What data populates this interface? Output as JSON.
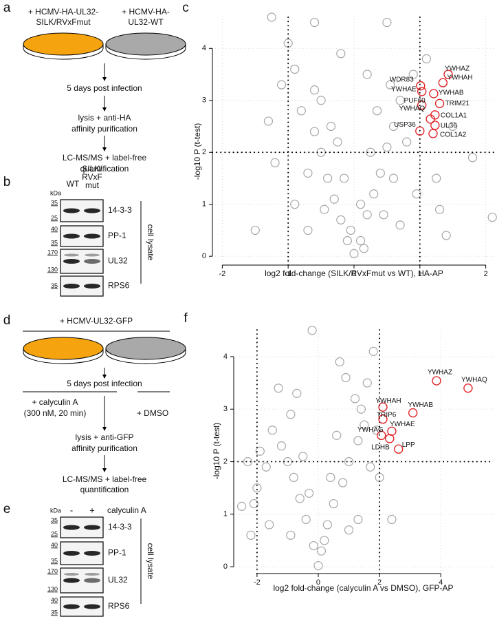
{
  "panel_a": {
    "label": "a",
    "left_condition": [
      "+ HCMV-HA-UL32-",
      "SILK/RVxFmut"
    ],
    "right_condition": [
      "+ HCMV-HA-",
      "UL32-WT"
    ],
    "steps": [
      [
        "5 days post infection"
      ],
      [
        "lysis + anti-HA",
        "affinity purification"
      ],
      [
        "LC-MS/MS + label-free",
        "quantification"
      ]
    ]
  },
  "panel_b": {
    "label": "b",
    "kda_unit": "kDa",
    "lanes": [
      [
        "WT"
      ],
      [
        "SILK/",
        "RVxF",
        "mut"
      ]
    ],
    "blots": [
      {
        "name": "14-3-3",
        "markers": [
          "35",
          "25"
        ]
      },
      {
        "name": "PP-1",
        "markers": [
          "40",
          "35"
        ]
      },
      {
        "name": "UL32",
        "markers": [
          "170",
          "130"
        ]
      },
      {
        "name": "RPS6",
        "markers": [
          "35"
        ]
      }
    ],
    "side_label": "cell lysate"
  },
  "panel_d": {
    "label": "d",
    "infection": "+ HCMV-UL32-GFP",
    "time": "5 days post infection",
    "treatment": [
      "+ calyculin A",
      "(300 nM, 20 min)"
    ],
    "control": "+ DMSO",
    "steps": [
      [
        "lysis + anti-GFP",
        "affinity purification"
      ],
      [
        "LC-MS/MS + label-free",
        "quantification"
      ]
    ]
  },
  "panel_e": {
    "label": "e",
    "kda_unit": "kDa",
    "lanes": [
      [
        "-"
      ],
      [
        "+"
      ]
    ],
    "treatment": "calyculin A",
    "blots": [
      {
        "name": "14-3-3",
        "markers": [
          "35",
          "25"
        ]
      },
      {
        "name": "PP-1",
        "markers": [
          "40",
          "35"
        ]
      },
      {
        "name": "UL32",
        "markers": [
          "170",
          "130"
        ]
      },
      {
        "name": "RPS6",
        "markers": [
          "40",
          "35"
        ]
      }
    ],
    "side_label": "cell lysate"
  },
  "chart_data": [
    {
      "type": "scatter",
      "label": "c",
      "x_label": "log2 fold-change (SILK/RVxFmut vs WT), HA-AP",
      "y_label": "-log10 P (t-test)",
      "xlim": [
        -2.15,
        2.15
      ],
      "ylim": [
        -0.17,
        4.6
      ],
      "xticks": [
        -2,
        -1,
        0,
        1,
        2
      ],
      "yticks": [
        0,
        1,
        2,
        3,
        4
      ],
      "grid": true,
      "thresholds": {
        "x": [
          -1,
          1
        ],
        "y": 2
      },
      "point_color": "#a6a6a6",
      "hit_color": "#e0262b",
      "points": {
        "x": [
          0,
          0.1,
          -0.1,
          0.2,
          -0.2,
          0.3,
          -0.3,
          0.4,
          -0.4,
          0.5,
          -0.5,
          0.6,
          -0.6,
          0.7,
          -0.6,
          0.45,
          -0.45,
          0.6,
          -0.7,
          0.8,
          -0.8,
          0.35,
          -0.35,
          0.1,
          -0.15,
          0.25,
          -0.25,
          0.9,
          -0.9,
          -1.1,
          -1.0,
          -0.6,
          0.5,
          -1.25,
          1.5,
          1.8,
          2.1,
          -1.5,
          -1.3,
          0.95,
          -0.9,
          0.7,
          -0.7,
          1.1,
          1.25,
          -1.2,
          0.15,
          -0.05,
          0.55,
          -0.5,
          0.2,
          -0.2,
          1.3,
          1.4
        ],
        "y": [
          0.05,
          0.3,
          0.3,
          0.8,
          0.7,
          1.2,
          1.1,
          1.6,
          1.5,
          2.1,
          2.0,
          2.5,
          2.4,
          3.0,
          3.2,
          0.8,
          0.9,
          1.5,
          1.6,
          2.2,
          2.8,
          2.8,
          2.5,
          1.0,
          1.5,
          2.0,
          2.2,
          3.5,
          3.6,
          3.3,
          4.1,
          4.5,
          4.5,
          4.6,
          2.5,
          1.9,
          0.75,
          0.5,
          2.6,
          1.2,
          1.0,
          0.6,
          0.5,
          3.8,
          1.5,
          1.8,
          0.15,
          0.5,
          3.3,
          3.0,
          3.5,
          3.9,
          0.9,
          0.4
        ]
      },
      "hits": {
        "labels": [
          "YWHAZ",
          "YWHAH",
          "WDR83",
          "YWHAE",
          "YWHAB",
          "PUF60",
          "TRIM21",
          "YWHAQ",
          "COL1A1",
          "UL36",
          "COL1A2",
          "USP36"
        ],
        "x": [
          1.43,
          1.35,
          1.01,
          1.03,
          1.21,
          1.03,
          1.3,
          1.16,
          1.23,
          1.23,
          1.2,
          1.0
        ],
        "y": [
          3.5,
          3.34,
          3.28,
          3.17,
          3.13,
          2.91,
          2.94,
          2.64,
          2.72,
          2.52,
          2.36,
          2.41
        ]
      }
    },
    {
      "type": "scatter",
      "label": "f",
      "x_label": "log2 fold-change (calyculin A vs DMSO), GFP-AP",
      "y_label": "-log10 P (t-test)",
      "xlim": [
        -2.76,
        5.7
      ],
      "ylim": [
        -0.13,
        4.55
      ],
      "xticks": [
        -2,
        0,
        2,
        4
      ],
      "yticks": [
        0,
        1,
        2,
        3,
        4
      ],
      "grid": true,
      "thresholds": {
        "x": [
          -2,
          2
        ],
        "y": 2
      },
      "point_color": "#a6a6a6",
      "hit_color": "#e0262b",
      "points": {
        "x": [
          0,
          0.1,
          -0.15,
          0.3,
          -0.4,
          -0.6,
          0.5,
          -0.8,
          0.8,
          -1.0,
          1.0,
          -1.2,
          1.3,
          -1.5,
          1.5,
          -1.7,
          1.7,
          -2.0,
          -2.1,
          -2.2,
          -2.5,
          -1.9,
          -1.3,
          -0.7,
          -0.2,
          0.9,
          1.2,
          1.6,
          1.8,
          0.6,
          -0.5,
          -0.9,
          1.4,
          0.2,
          -0.3,
          0.4,
          -1.6,
          1.3,
          2.4,
          1.0,
          -0.9,
          2.0,
          1.9,
          -2.3,
          0.7
        ],
        "y": [
          0.02,
          0.3,
          0.4,
          0.8,
          0.9,
          1.3,
          1.2,
          1.7,
          1.6,
          2.0,
          2.0,
          2.3,
          2.4,
          2.6,
          2.7,
          1.9,
          1.9,
          1.5,
          1.2,
          0.6,
          1.15,
          2.2,
          3.4,
          3.3,
          4.5,
          3.6,
          3.2,
          3.5,
          4.1,
          2.5,
          2.1,
          2.9,
          3.0,
          0.5,
          1.4,
          1.7,
          0.8,
          0.9,
          0.9,
          0.7,
          0.6,
          1.7,
          2.6,
          2.0,
          3.9
        ]
      },
      "hits": {
        "labels": [
          "YWHAZ",
          "YWHAQ",
          "YWHAH",
          "YWHAB",
          "TRIP6",
          "YWHAE",
          "YWHAG",
          "LDHB",
          "LPP"
        ],
        "x": [
          3.86,
          4.89,
          2.11,
          3.09,
          2.11,
          2.4,
          2.06,
          2.33,
          2.62
        ],
        "y": [
          3.54,
          3.4,
          3.04,
          2.93,
          2.81,
          2.58,
          2.5,
          2.44,
          2.24
        ]
      }
    }
  ]
}
